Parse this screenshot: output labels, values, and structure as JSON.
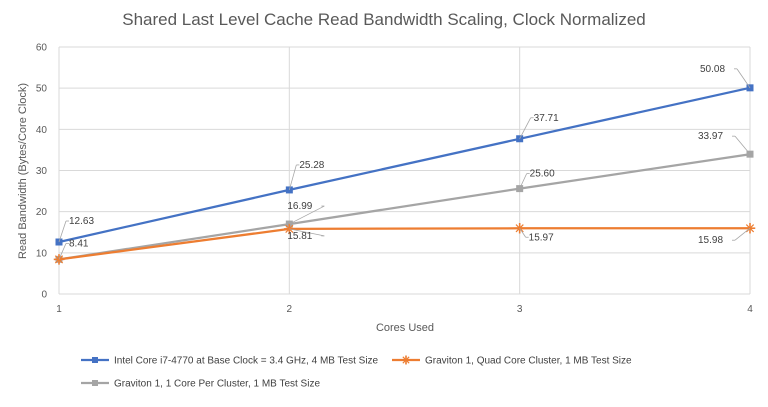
{
  "chart_data": {
    "type": "line",
    "title": "Shared Last Level Cache Read Bandwidth Scaling, Clock Normalized",
    "xlabel": "Cores Used",
    "ylabel": "Read Bandwidth (Bytes/Core Clock)",
    "x": [
      1,
      2,
      3,
      4
    ],
    "ylim": [
      0,
      60
    ],
    "yticks": [
      0,
      10,
      20,
      30,
      40,
      50,
      60
    ],
    "grid": true,
    "legend_position": "bottom",
    "series": [
      {
        "name": "Intel Core i7-4770 at Base Clock = 3.4 GHz, 4 MB Test Size",
        "values": [
          12.63,
          25.28,
          37.71,
          50.08
        ],
        "labels": [
          "12.63",
          "25.28",
          "37.71",
          "50.08"
        ],
        "color": "#4472c4",
        "marker": "square"
      },
      {
        "name": "Graviton 1, Quad Core Cluster, 1 MB Test Size",
        "values": [
          8.41,
          15.81,
          15.97,
          15.98
        ],
        "labels": [
          "8.41",
          "15.81",
          "15.97",
          "15.98"
        ],
        "color": "#ed7d31",
        "marker": "star"
      },
      {
        "name": "Graviton 1, 1 Core Per Cluster, 1 MB Test Size",
        "values": [
          8.41,
          16.99,
          25.6,
          33.97
        ],
        "labels": [
          "",
          "16.99",
          "25.60",
          "33.97"
        ],
        "color": "#a5a5a5",
        "marker": "square"
      }
    ]
  }
}
